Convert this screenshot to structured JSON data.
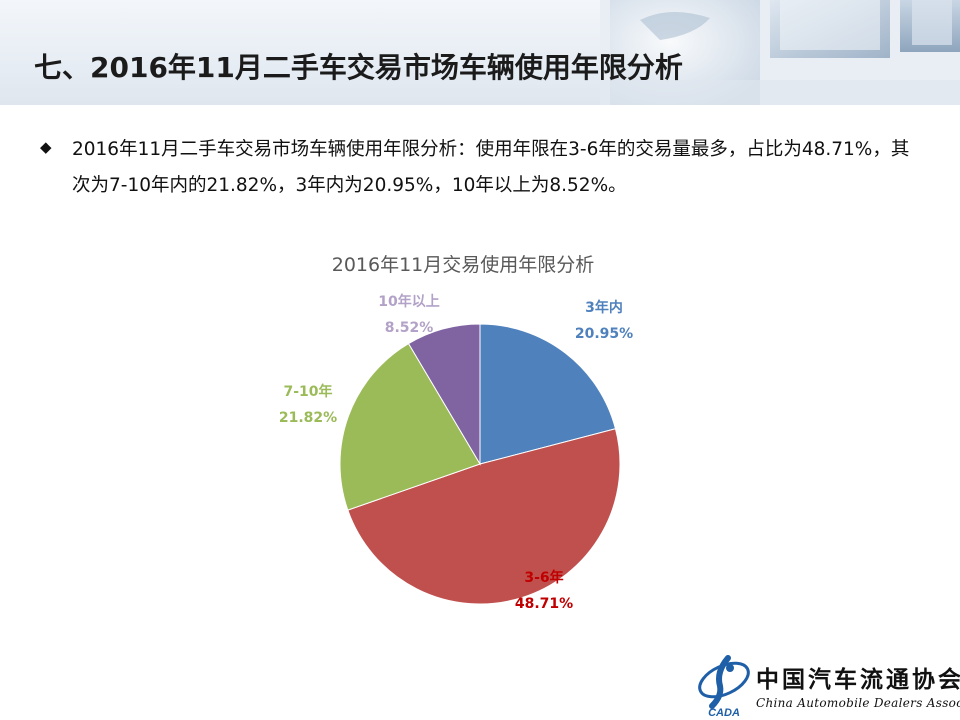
{
  "header": {
    "title": "七、2016年11月二手车交易市场车辆使用年限分析"
  },
  "bullet": {
    "text": "2016年11月二手车交易市场车辆使用年限分析：使用年限在3-6年的交易量最多，占比为48.71%，其次为7-10年内的21.82%，3年内为20.95%，10年以上为8.52%。"
  },
  "chart_data": {
    "type": "pie",
    "title": "2016年11月交易使用年限分析",
    "slices": [
      {
        "label": "3年内",
        "value": 20.95,
        "value_label": "20.95%",
        "color": "#4f81bd",
        "label_color": "#4f81bd"
      },
      {
        "label": "3-6年",
        "value": 48.71,
        "value_label": "48.71%",
        "color": "#c0504d",
        "label_color": "#c00000"
      },
      {
        "label": "7-10年",
        "value": 21.82,
        "value_label": "21.82%",
        "color": "#9bbb59",
        "label_color": "#9bbb59"
      },
      {
        "label": "10年以上",
        "value": 8.52,
        "value_label": "8.52%",
        "color": "#8064a2",
        "label_color": "#b3a2c7"
      }
    ],
    "start_angle_deg": 0,
    "direction": "clockwise"
  },
  "footer": {
    "logo_cn": "中国汽车流通协会",
    "logo_en": "China Automobile Dealers Association",
    "logo_abbr": "CADA"
  }
}
